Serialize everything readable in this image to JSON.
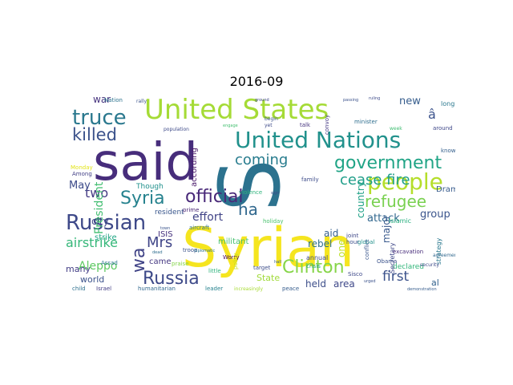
{
  "title": "2016-09",
  "wordcloud": {
    "background": "#ffffff",
    "colormap": "viridis",
    "words": [
      {
        "text": "Syrian",
        "color": "#f5e51f"
      },
      {
        "text": "said",
        "color": "#472d7b"
      },
      {
        "text": "S",
        "color": "#2c728e"
      },
      {
        "text": "United States",
        "color": "#a5db36"
      },
      {
        "text": "United Nations",
        "color": "#21918c"
      },
      {
        "text": "truce",
        "color": "#2a788e"
      },
      {
        "text": "killed",
        "color": "#3b528b"
      },
      {
        "text": "people",
        "color": "#b5de2b"
      },
      {
        "text": "refugee",
        "color": "#7ad151"
      },
      {
        "text": "government",
        "color": "#20a486"
      },
      {
        "text": "cease fire",
        "color": "#1f9e89"
      },
      {
        "text": "Russian",
        "color": "#3e4989"
      },
      {
        "text": "Syria",
        "color": "#26828e"
      },
      {
        "text": "official",
        "color": "#482878"
      },
      {
        "text": "coming",
        "color": "#287c8e"
      },
      {
        "text": "ha",
        "color": "#31688e"
      },
      {
        "text": "Clinton",
        "color": "#86d549"
      },
      {
        "text": "Russia",
        "color": "#3e4a89"
      },
      {
        "text": "wa",
        "color": "#414487"
      },
      {
        "text": "Mrs",
        "color": "#404588"
      },
      {
        "text": "airstrike",
        "color": "#35b779"
      },
      {
        "text": "military",
        "color": "#35b779"
      },
      {
        "text": "first",
        "color": "#3b528b"
      },
      {
        "text": "two",
        "color": "#443983"
      },
      {
        "text": "May",
        "color": "#3e4c8a"
      },
      {
        "text": "war",
        "color": "#46337e"
      },
      {
        "text": "new",
        "color": "#365d8d"
      },
      {
        "text": "group",
        "color": "#3a548c"
      },
      {
        "text": "Drama",
        "color": "#375a8c"
      },
      {
        "text": "country",
        "color": "#1fa187"
      },
      {
        "text": "attack",
        "color": "#31678e"
      },
      {
        "text": "rebel",
        "color": "#2d708e"
      },
      {
        "text": "aid",
        "color": "#355f8d"
      },
      {
        "text": "effort",
        "color": "#414487"
      },
      {
        "text": "city",
        "color": "#3f4788"
      },
      {
        "text": "President",
        "color": "#42be71"
      },
      {
        "text": "Aleppo",
        "color": "#5ec962"
      },
      {
        "text": "many",
        "color": "#433e85"
      },
      {
        "text": "world",
        "color": "#3b528b"
      },
      {
        "text": "held",
        "color": "#3d4e8a"
      },
      {
        "text": "area",
        "color": "#3f4889"
      },
      {
        "text": "State",
        "color": "#a0da39"
      },
      {
        "text": "major",
        "color": "#38588c"
      },
      {
        "text": "one",
        "color": "#bddf26"
      },
      {
        "text": "strike",
        "color": "#21a685"
      },
      {
        "text": "ISIS",
        "color": "#46327e"
      },
      {
        "text": "came",
        "color": "#453882"
      },
      {
        "text": "militant",
        "color": "#46c06f"
      },
      {
        "text": "according",
        "color": "#481769"
      },
      {
        "text": "Though",
        "color": "#21918c"
      },
      {
        "text": "resident",
        "color": "#39568c"
      },
      {
        "text": "â",
        "color": "#3b528b"
      },
      {
        "text": "long",
        "color": "#2a788e"
      },
      {
        "text": "Nation",
        "color": "#2c728e"
      },
      {
        "text": "annual",
        "color": "#3e4a89"
      },
      {
        "text": "Islamic",
        "color": "#29af7f"
      },
      {
        "text": "declared",
        "color": "#32b67a"
      },
      {
        "text": "Secretary",
        "color": "#3f4788"
      },
      {
        "text": "strategy",
        "color": "#2a788e"
      },
      {
        "text": "al",
        "color": "#33638d"
      },
      {
        "text": "humanitarian",
        "color": "#31688e"
      },
      {
        "text": "leader",
        "color": "#26828e"
      },
      {
        "text": "peace",
        "color": "#365d8d"
      },
      {
        "text": "child",
        "color": "#2d708e"
      },
      {
        "text": "Israel",
        "color": "#433e85"
      },
      {
        "text": "target",
        "color": "#3d4d8a"
      },
      {
        "text": "Worry",
        "color": "#46075a"
      },
      {
        "text": "troop",
        "color": "#3b528b"
      },
      {
        "text": "prime",
        "color": "#482475"
      },
      {
        "text": "violence",
        "color": "#2fb47c"
      },
      {
        "text": "family",
        "color": "#3e4c8a"
      },
      {
        "text": "crisis",
        "color": "#20a386"
      },
      {
        "text": "convoy",
        "color": "#443983"
      },
      {
        "text": "talk",
        "color": "#46337e"
      },
      {
        "text": "minister",
        "color": "#2e6e8e"
      },
      {
        "text": "week",
        "color": "#40bd72"
      },
      {
        "text": "around",
        "color": "#3f4889"
      },
      {
        "text": "know",
        "color": "#35608d"
      },
      {
        "text": "hour",
        "color": "#3d4e8a"
      },
      {
        "text": "joint",
        "color": "#3f4788"
      },
      {
        "text": "global",
        "color": "#21918c"
      },
      {
        "text": "excavation",
        "color": "#472c7a"
      },
      {
        "text": "Assad",
        "color": "#2a768e"
      },
      {
        "text": "praise",
        "color": "#84d44b"
      },
      {
        "text": "little",
        "color": "#2fb47c"
      },
      {
        "text": "policy",
        "color": "#c8e020"
      },
      {
        "text": "Sisco",
        "color": "#3e4989"
      },
      {
        "text": "begin",
        "color": "#3b528b"
      },
      {
        "text": "yet",
        "color": "#3e4a89"
      },
      {
        "text": "holiday",
        "color": "#4ac16d"
      },
      {
        "text": "aircraft",
        "color": "#2c718e"
      },
      {
        "text": "Monday",
        "color": "#e2e418"
      },
      {
        "text": "Obama",
        "color": "#3b528b"
      },
      {
        "text": "increasingly",
        "color": "#a8db34"
      },
      {
        "text": "conflict",
        "color": "#39568c"
      },
      {
        "text": "security",
        "color": "#3e4a89"
      },
      {
        "text": "agreement",
        "color": "#31688e"
      },
      {
        "text": "rally",
        "color": "#3b528b"
      },
      {
        "text": "population",
        "color": "#3e4a89"
      },
      {
        "text": "ground",
        "color": "#3f4788"
      },
      {
        "text": "engage",
        "color": "#44bf70"
      },
      {
        "text": "passing",
        "color": "#3b528b"
      },
      {
        "text": "Among",
        "color": "#424086"
      },
      {
        "text": "diplomatic",
        "color": "#2c728e"
      },
      {
        "text": "hall",
        "color": "#35608d"
      },
      {
        "text": "ruling",
        "color": "#3e4c8a"
      },
      {
        "text": "dead",
        "color": "#2e6d8e"
      },
      {
        "text": "town",
        "color": "#3a548c"
      },
      {
        "text": "sign",
        "color": "#3d4e8a"
      },
      {
        "text": "urged",
        "color": "#3b528b"
      },
      {
        "text": "demonstration",
        "color": "#365d8d"
      }
    ]
  }
}
